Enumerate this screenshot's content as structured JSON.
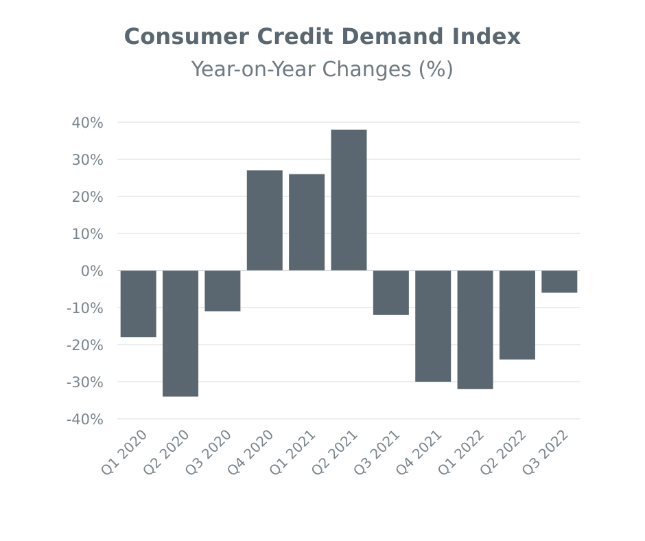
{
  "chart_data": {
    "type": "bar",
    "title": "Consumer Credit Demand Index",
    "subtitle": "Year-on-Year Changes (%)",
    "xlabel": "",
    "ylabel": "",
    "categories": [
      "Q1 2020",
      "Q2 2020",
      "Q3 2020",
      "Q4 2020",
      "Q1 2021",
      "Q2 2021",
      "Q3 2021",
      "Q4 2021",
      "Q1 2022",
      "Q2 2022",
      "Q3 2022"
    ],
    "values": [
      -18,
      -34,
      -11,
      27,
      26,
      38,
      -12,
      -30,
      -32,
      -24,
      -6
    ],
    "ylim": [
      -40,
      40
    ],
    "yticks": [
      40,
      30,
      20,
      10,
      0,
      -10,
      -20,
      -30,
      -40
    ],
    "ytick_labels": [
      "40%",
      "30%",
      "20%",
      "10%",
      "0%",
      "-10%",
      "-20%",
      "-30%",
      "-40%"
    ],
    "grid": true,
    "legend": "none",
    "bar_color": "#5b6770"
  }
}
